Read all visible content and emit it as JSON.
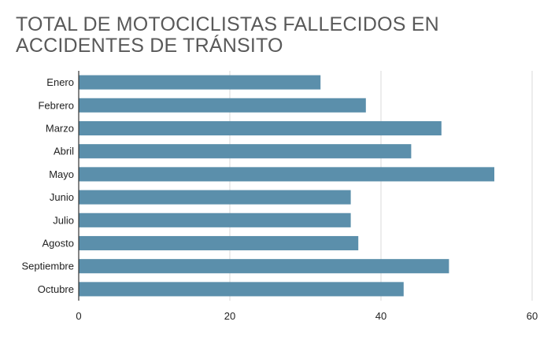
{
  "chart_data": {
    "type": "bar",
    "orientation": "horizontal",
    "title": "TOTAL DE MOTOCICLISTAS FALLECIDOS EN ACCIDENTES DE TRÁNSITO",
    "categories": [
      "Enero",
      "Febrero",
      "Marzo",
      "Abril",
      "Mayo",
      "Junio",
      "Julio",
      "Agosto",
      "Septiembre",
      "Octubre"
    ],
    "values": [
      32,
      38,
      48,
      44,
      55,
      36,
      36,
      37,
      49,
      43
    ],
    "xlim": [
      0,
      60
    ],
    "xticks": [
      0,
      20,
      40,
      60
    ],
    "grid": "vertical",
    "legend": "none",
    "colors": {
      "bar": "#5b8fab",
      "grid": "#d9d9d9",
      "axis": "#333333",
      "title": "#595959"
    }
  }
}
